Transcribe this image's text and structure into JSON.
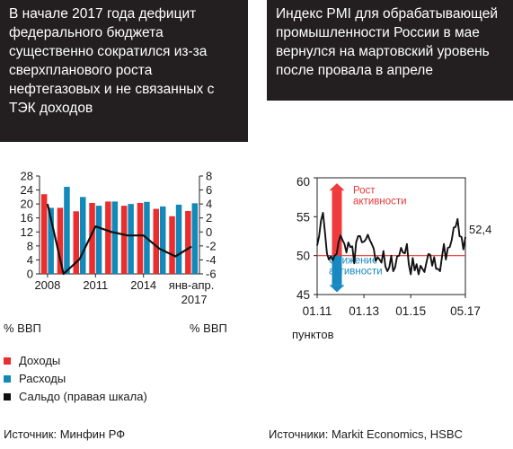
{
  "left": {
    "title": "В начале 2017 года дефицит федерального бюджета существенно сократился из-за сверхпланового роста нефтегазовых и не связанных с ТЭК доходов",
    "unit_left": "% ВВП",
    "unit_right": "% ВВП",
    "legend": [
      "Доходы",
      "Расходы",
      "Сальдо (правая шкала)"
    ],
    "source": "Источник:  Минфин РФ"
  },
  "right": {
    "title": "Индекс PMI для обрабатывающей промышленности России в мае вернулся на мартовский уровень после провала в апреле",
    "ylabel": "пунктов",
    "annotation_up": "Рост активности",
    "annotation_down": "Снижение активности",
    "last_value_label": "52,4",
    "source": "Источники: Markit Economics, HSBC"
  },
  "colors": {
    "revenue": "#ec2d2d",
    "expenditure": "#1289b8",
    "balance": "#111111",
    "pmi_line": "#111111",
    "threshold": "#e53935",
    "title_bg": "#231f20"
  },
  "chart_data": [
    {
      "type": "bar",
      "categories": [
        "2008",
        "2009",
        "2010",
        "2011",
        "2012",
        "2013",
        "2014",
        "2015",
        "2016",
        "янв-апр. 2017"
      ],
      "x_tick_labels": [
        "2008",
        "2011",
        "2014",
        "янв-апр.",
        "2017"
      ],
      "series": [
        {
          "name": "Доходы",
          "axis": "left",
          "values": [
            22.8,
            18.9,
            17.9,
            20.3,
            20.7,
            19.5,
            20.3,
            18.6,
            16.5,
            18.0
          ]
        },
        {
          "name": "Расходы",
          "axis": "left",
          "values": [
            18.9,
            24.9,
            22.0,
            19.5,
            20.7,
            20.0,
            20.6,
            19.3,
            19.8,
            20.2
          ]
        },
        {
          "name": "Сальдо (правая шкала)",
          "axis": "right",
          "type": "line",
          "values": [
            4.0,
            -6.0,
            -3.9,
            0.8,
            0.0,
            -0.5,
            -0.5,
            -2.4,
            -3.5,
            -2.1
          ]
        }
      ],
      "y_left_ticks": [
        0,
        4,
        8,
        12,
        16,
        20,
        24,
        28
      ],
      "y_right_ticks": [
        -6,
        -4,
        -2,
        0,
        2,
        4,
        6,
        8
      ],
      "ylim_left": [
        0,
        28
      ],
      "ylim_right": [
        -6,
        8
      ],
      "ylabel_left": "% ВВП",
      "ylabel_right": "% ВВП",
      "legend_position": "bottom-left",
      "grid": false
    },
    {
      "type": "line",
      "x_tick_labels": [
        "01.11",
        "01.13",
        "01.15",
        "05.17"
      ],
      "x_start": "2011-01",
      "x_end": "2017-05",
      "y_ticks": [
        45,
        50,
        55,
        60
      ],
      "ylim": [
        45,
        60
      ],
      "ylabel": "пунктов",
      "threshold": 50,
      "series": [
        {
          "name": "PMI",
          "values": [
            51.3,
            52.5,
            54.5,
            55.5,
            53.0,
            50.3,
            49.5,
            49.9,
            49.4,
            50.0,
            50.2,
            51.8,
            52.6,
            52.0,
            51.5,
            50.4,
            51.7,
            51.1,
            51.2,
            49.0,
            51.7,
            52.5,
            52.5,
            51.7,
            51.8,
            52.1,
            52.7,
            52.0,
            51.5,
            50.9,
            49.3,
            49.8,
            49.5,
            49.1,
            50.6,
            48.6,
            48.0,
            48.5,
            50.0,
            48.0,
            48.5,
            49.9,
            50.0,
            51.0,
            50.4,
            50.3,
            51.5,
            48.9,
            47.6,
            49.7,
            48.1,
            48.9,
            47.6,
            48.7,
            48.3,
            47.9,
            49.1,
            50.2,
            50.1,
            48.7,
            49.8,
            48.3,
            48.3,
            48.0,
            49.8,
            51.5,
            49.5,
            51.0,
            51.1,
            52.0,
            53.6,
            53.7,
            54.7,
            52.5,
            52.4,
            50.8,
            52.4
          ]
        }
      ],
      "last_value": 52.4,
      "grid": false
    }
  ]
}
